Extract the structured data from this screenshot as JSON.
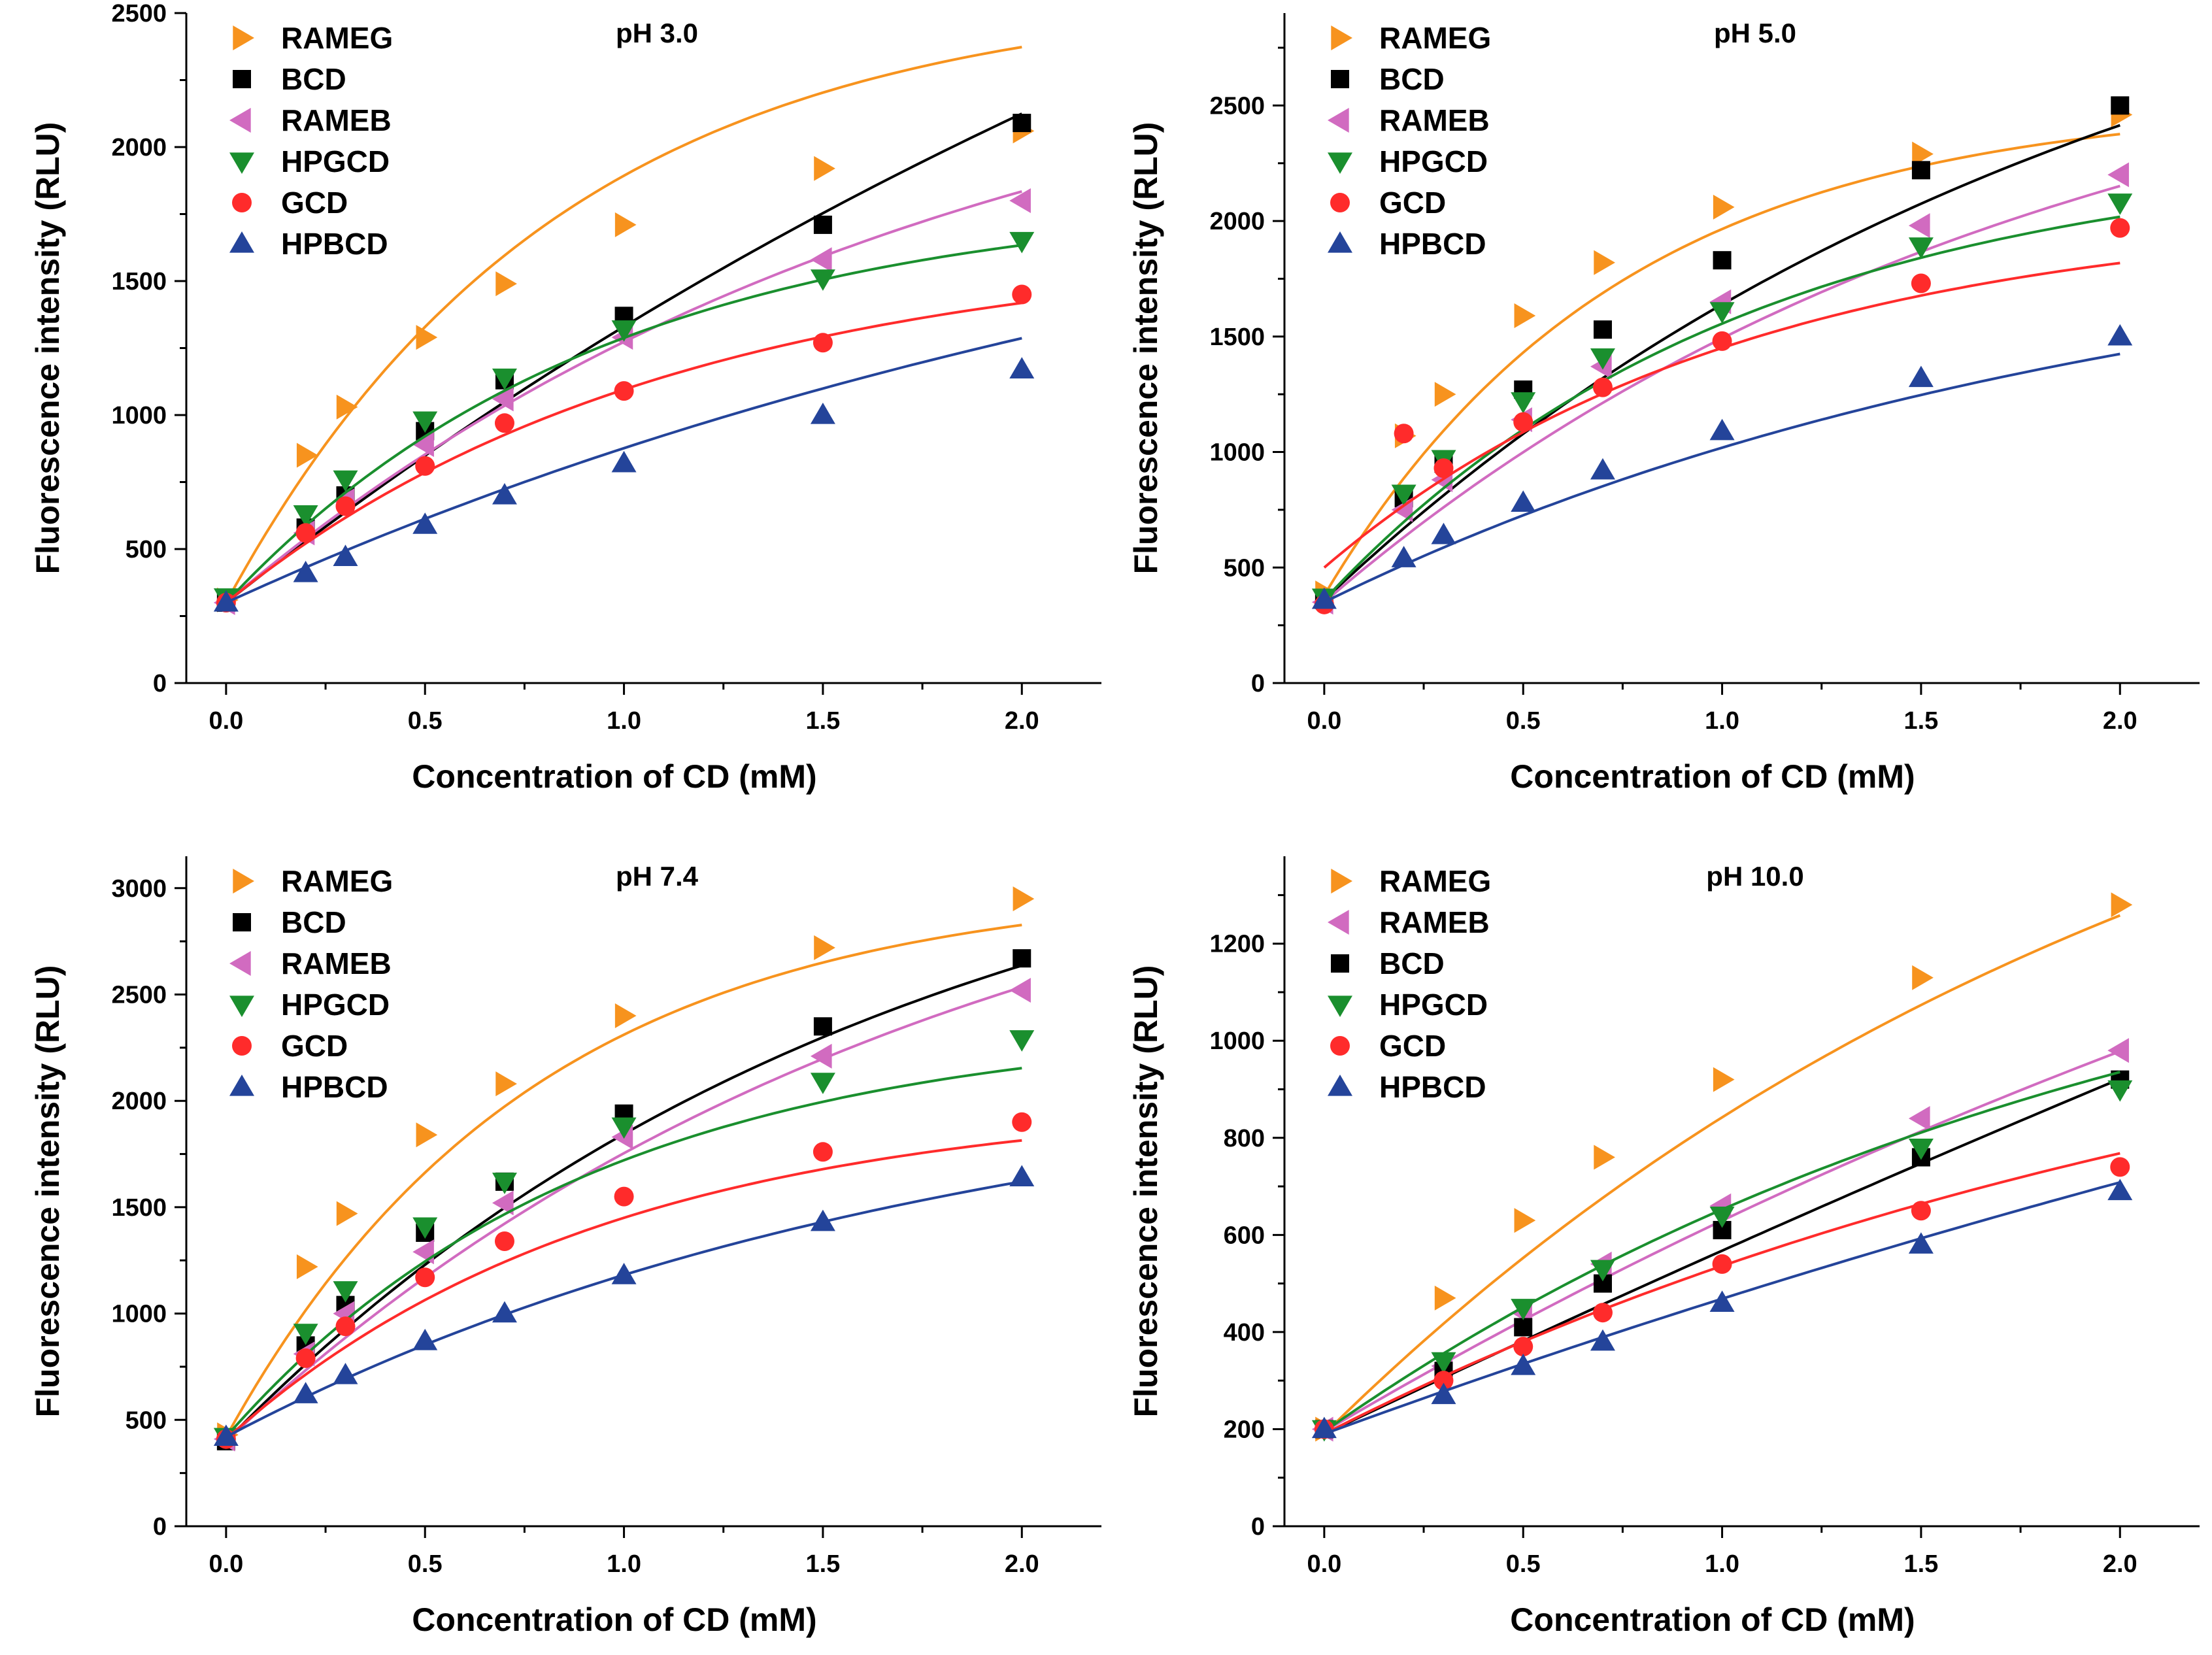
{
  "colors": {
    "RAMEG": "#f7931e",
    "BCD": "#000000",
    "RAMEB": "#d16bc0",
    "HPGCD": "#1a8f2e",
    "GCD": "#ff2b2b",
    "HPBCD": "#24449a"
  },
  "chart_data": [
    {
      "type": "scatter",
      "title": "pH 3.0",
      "xlabel": "Concentration of CD (mM)",
      "ylabel": "Fluorescence intensity (RLU)",
      "xlim": [
        -0.1,
        2.2
      ],
      "ylim": [
        0,
        2500
      ],
      "x_ticks": [
        0.0,
        0.5,
        1.0,
        1.5,
        2.0
      ],
      "x_tick_labels": [
        "0.0",
        "0.5",
        "1.0",
        "1.5",
        "2.0"
      ],
      "y_ticks": [
        0,
        500,
        1000,
        1500,
        2000,
        2500
      ],
      "y_tick_labels": [
        "0",
        "500",
        "1000",
        "1500",
        "2000",
        "2500"
      ],
      "legend_position": "top-left",
      "series": [
        {
          "name": "RAMEG",
          "marker": "triangle-right",
          "x": [
            0,
            0.2,
            0.3,
            0.5,
            0.7,
            1.0,
            1.5,
            2.0
          ],
          "values": [
            310,
            850,
            1030,
            1290,
            1490,
            1710,
            1920,
            2060
          ],
          "fit": [
            300,
            2280,
            1.2
          ]
        },
        {
          "name": "BCD",
          "marker": "square",
          "x": [
            0,
            0.2,
            0.3,
            0.5,
            0.7,
            1.0,
            1.5,
            2.0
          ],
          "values": [
            300,
            580,
            700,
            940,
            1130,
            1370,
            1710,
            2090
          ],
          "fit": [
            300,
            4500,
            0.26
          ]
        },
        {
          "name": "RAMEB",
          "marker": "triangle-left",
          "x": [
            0,
            0.2,
            0.3,
            0.5,
            0.7,
            1.0,
            1.5,
            2.0
          ],
          "values": [
            300,
            560,
            680,
            890,
            1060,
            1290,
            1580,
            1800
          ],
          "fit": [
            300,
            2300,
            0.55
          ]
        },
        {
          "name": "HPGCD",
          "marker": "triangle-down",
          "x": [
            0,
            0.2,
            0.3,
            0.5,
            0.7,
            1.0,
            1.5,
            2.0
          ],
          "values": [
            320,
            630,
            760,
            980,
            1140,
            1320,
            1510,
            1650
          ],
          "fit": [
            300,
            1520,
            1.05
          ]
        },
        {
          "name": "GCD",
          "marker": "circle",
          "x": [
            0,
            0.2,
            0.3,
            0.5,
            0.7,
            1.0,
            1.5,
            2.0
          ],
          "values": [
            300,
            560,
            660,
            810,
            970,
            1090,
            1270,
            1450
          ],
          "fit": [
            300,
            1340,
            0.9
          ]
        },
        {
          "name": "HPBCD",
          "marker": "triangle-up",
          "x": [
            0,
            0.2,
            0.3,
            0.5,
            0.7,
            1.0,
            1.5,
            2.0
          ],
          "values": [
            300,
            410,
            470,
            590,
            700,
            820,
            1000,
            1170
          ],
          "fit": [
            300,
            2000,
            0.34
          ]
        }
      ]
    },
    {
      "type": "scatter",
      "title": "pH 5.0",
      "xlabel": "Concentration of CD (mM)",
      "ylabel": "Fluorescence intensity (RLU)",
      "xlim": [
        -0.1,
        2.2
      ],
      "ylim": [
        0,
        2900
      ],
      "x_ticks": [
        0.0,
        0.5,
        1.0,
        1.5,
        2.0
      ],
      "x_tick_labels": [
        "0.0",
        "0.5",
        "1.0",
        "1.5",
        "2.0"
      ],
      "y_ticks": [
        0,
        500,
        1000,
        1500,
        2000,
        2500
      ],
      "y_tick_labels": [
        "0",
        "500",
        "1000",
        "1500",
        "2000",
        "2500"
      ],
      "legend_position": "top-left",
      "series": [
        {
          "name": "RAMEG",
          "marker": "triangle-right",
          "x": [
            0,
            0.2,
            0.3,
            0.5,
            0.7,
            1.0,
            1.5,
            2.0
          ],
          "values": [
            390,
            1070,
            1250,
            1590,
            1820,
            2060,
            2290,
            2460
          ],
          "fit": [
            380,
            2140,
            1.35
          ]
        },
        {
          "name": "BCD",
          "marker": "square",
          "x": [
            0,
            0.2,
            0.3,
            0.5,
            0.7,
            1.0,
            1.5,
            2.0
          ],
          "values": [
            360,
            800,
            950,
            1270,
            1530,
            1830,
            2220,
            2500
          ],
          "fit": [
            360,
            3250,
            0.5
          ]
        },
        {
          "name": "RAMEB",
          "marker": "triangle-left",
          "x": [
            0,
            0.2,
            0.3,
            0.5,
            0.7,
            1.0,
            1.5,
            2.0
          ],
          "values": [
            350,
            750,
            880,
            1140,
            1370,
            1650,
            1980,
            2200
          ],
          "fit": [
            350,
            2700,
            0.55
          ]
        },
        {
          "name": "HPGCD",
          "marker": "triangle-down",
          "x": [
            0,
            0.2,
            0.3,
            0.5,
            0.7,
            1.0,
            1.5,
            2.0
          ],
          "values": [
            370,
            820,
            970,
            1220,
            1410,
            1610,
            1890,
            2080
          ],
          "fit": [
            360,
            1950,
            0.95
          ]
        },
        {
          "name": "GCD",
          "marker": "circle",
          "x": [
            0,
            0.2,
            0.3,
            0.5,
            0.7,
            1.0,
            1.5,
            2.0
          ],
          "values": [
            340,
            1080,
            930,
            1130,
            1280,
            1480,
            1730,
            1970
          ],
          "fit": [
            500,
            1550,
            0.95
          ]
        },
        {
          "name": "HPBCD",
          "marker": "triangle-up",
          "x": [
            0,
            0.2,
            0.3,
            0.5,
            0.7,
            1.0,
            1.5,
            2.0
          ],
          "values": [
            360,
            540,
            640,
            780,
            920,
            1090,
            1320,
            1500
          ],
          "fit": [
            350,
            1700,
            0.5
          ]
        }
      ]
    },
    {
      "type": "scatter",
      "title": "pH 7.4",
      "xlabel": "Concentration of CD (mM)",
      "ylabel": "Fluorescence intensity (RLU)",
      "xlim": [
        -0.1,
        2.2
      ],
      "ylim": [
        0,
        3150
      ],
      "x_ticks": [
        0.0,
        0.5,
        1.0,
        1.5,
        2.0
      ],
      "x_tick_labels": [
        "0.0",
        "0.5",
        "1.0",
        "1.5",
        "2.0"
      ],
      "y_ticks": [
        0,
        500,
        1000,
        1500,
        2000,
        2500,
        3000
      ],
      "y_tick_labels": [
        "0",
        "500",
        "1000",
        "1500",
        "2000",
        "2500",
        "3000"
      ],
      "legend_position": "top-left",
      "series": [
        {
          "name": "RAMEG",
          "marker": "triangle-right",
          "x": [
            0,
            0.2,
            0.3,
            0.5,
            0.7,
            1.0,
            1.5,
            2.0
          ],
          "values": [
            430,
            1220,
            1470,
            1840,
            2080,
            2400,
            2720,
            2950
          ],
          "fit": [
            420,
            2600,
            1.3
          ]
        },
        {
          "name": "BCD",
          "marker": "square",
          "x": [
            0,
            0.2,
            0.3,
            0.5,
            0.7,
            1.0,
            1.5,
            2.0
          ],
          "values": [
            400,
            850,
            1040,
            1380,
            1620,
            1940,
            2350,
            2670
          ],
          "fit": [
            400,
            3200,
            0.6
          ]
        },
        {
          "name": "RAMEB",
          "marker": "triangle-left",
          "x": [
            0,
            0.2,
            0.3,
            0.5,
            0.7,
            1.0,
            1.5,
            2.0
          ],
          "values": [
            410,
            810,
            1000,
            1290,
            1520,
            1830,
            2210,
            2520
          ],
          "fit": [
            400,
            3200,
            0.55
          ]
        },
        {
          "name": "HPGCD",
          "marker": "triangle-down",
          "x": [
            0,
            0.2,
            0.3,
            0.5,
            0.7,
            1.0,
            1.5,
            2.0
          ],
          "values": [
            420,
            910,
            1110,
            1410,
            1620,
            1880,
            2090,
            2290
          ],
          "fit": [
            420,
            1950,
            1.1
          ]
        },
        {
          "name": "GCD",
          "marker": "circle",
          "x": [
            0,
            0.2,
            0.3,
            0.5,
            0.7,
            1.0,
            1.5,
            2.0
          ],
          "values": [
            410,
            790,
            940,
            1170,
            1340,
            1550,
            1760,
            1900
          ],
          "fit": [
            410,
            1600,
            1.05
          ]
        },
        {
          "name": "HPBCD",
          "marker": "triangle-up",
          "x": [
            0,
            0.2,
            0.3,
            0.5,
            0.7,
            1.0,
            1.5,
            2.0
          ],
          "values": [
            420,
            620,
            710,
            870,
            1000,
            1180,
            1430,
            1640
          ],
          "fit": [
            420,
            1800,
            0.55
          ]
        }
      ]
    },
    {
      "type": "scatter",
      "title": "pH 10.0",
      "xlabel": "Concentration of CD (mM)",
      "ylabel": "Fluorescence intensity (RLU)",
      "xlim": [
        -0.1,
        2.2
      ],
      "ylim": [
        0,
        1380
      ],
      "x_ticks": [
        0.0,
        0.5,
        1.0,
        1.5,
        2.0
      ],
      "x_tick_labels": [
        "0.0",
        "0.5",
        "1.0",
        "1.5",
        "2.0"
      ],
      "y_ticks": [
        0,
        200,
        400,
        600,
        800,
        1000,
        1200
      ],
      "y_tick_labels": [
        "0",
        "200",
        "400",
        "600",
        "800",
        "1000",
        "1200"
      ],
      "legend_position": "top-left",
      "series": [
        {
          "name": "RAMEG",
          "marker": "triangle-right",
          "x": [
            0,
            0.3,
            0.5,
            0.7,
            1.0,
            1.5,
            2.0
          ],
          "values": [
            200,
            470,
            630,
            760,
            920,
            1130,
            1280
          ],
          "fit": [
            190,
            1800,
            0.45
          ]
        },
        {
          "name": "RAMEB",
          "marker": "triangle-left",
          "x": [
            0,
            0.3,
            0.5,
            0.7,
            1.0,
            1.5,
            2.0
          ],
          "values": [
            200,
            330,
            440,
            540,
            660,
            840,
            980
          ],
          "fit": [
            195,
            2200,
            0.22
          ]
        },
        {
          "name": "BCD",
          "marker": "square",
          "x": [
            0,
            0.3,
            0.5,
            0.7,
            1.0,
            1.5,
            2.0
          ],
          "values": [
            200,
            320,
            410,
            500,
            610,
            760,
            920
          ],
          "fit": [
            190,
            6000,
            0.065
          ]
        },
        {
          "name": "HPGCD",
          "marker": "triangle-down",
          "x": [
            0,
            0.3,
            0.5,
            0.7,
            1.0,
            1.5,
            2.0
          ],
          "values": [
            200,
            340,
            450,
            530,
            640,
            780,
            900
          ],
          "fit": [
            195,
            1200,
            0.48
          ]
        },
        {
          "name": "GCD",
          "marker": "circle",
          "x": [
            0,
            0.3,
            0.5,
            0.7,
            1.0,
            1.5,
            2.0
          ],
          "values": [
            200,
            300,
            370,
            440,
            540,
            650,
            740
          ],
          "fit": [
            190,
            1050,
            0.4
          ]
        },
        {
          "name": "HPBCD",
          "marker": "triangle-up",
          "x": [
            0,
            0.3,
            0.5,
            0.7,
            1.0,
            1.5,
            2.0
          ],
          "values": [
            200,
            270,
            330,
            380,
            460,
            580,
            690
          ],
          "fit": [
            190,
            2000,
            0.15
          ]
        }
      ]
    }
  ]
}
